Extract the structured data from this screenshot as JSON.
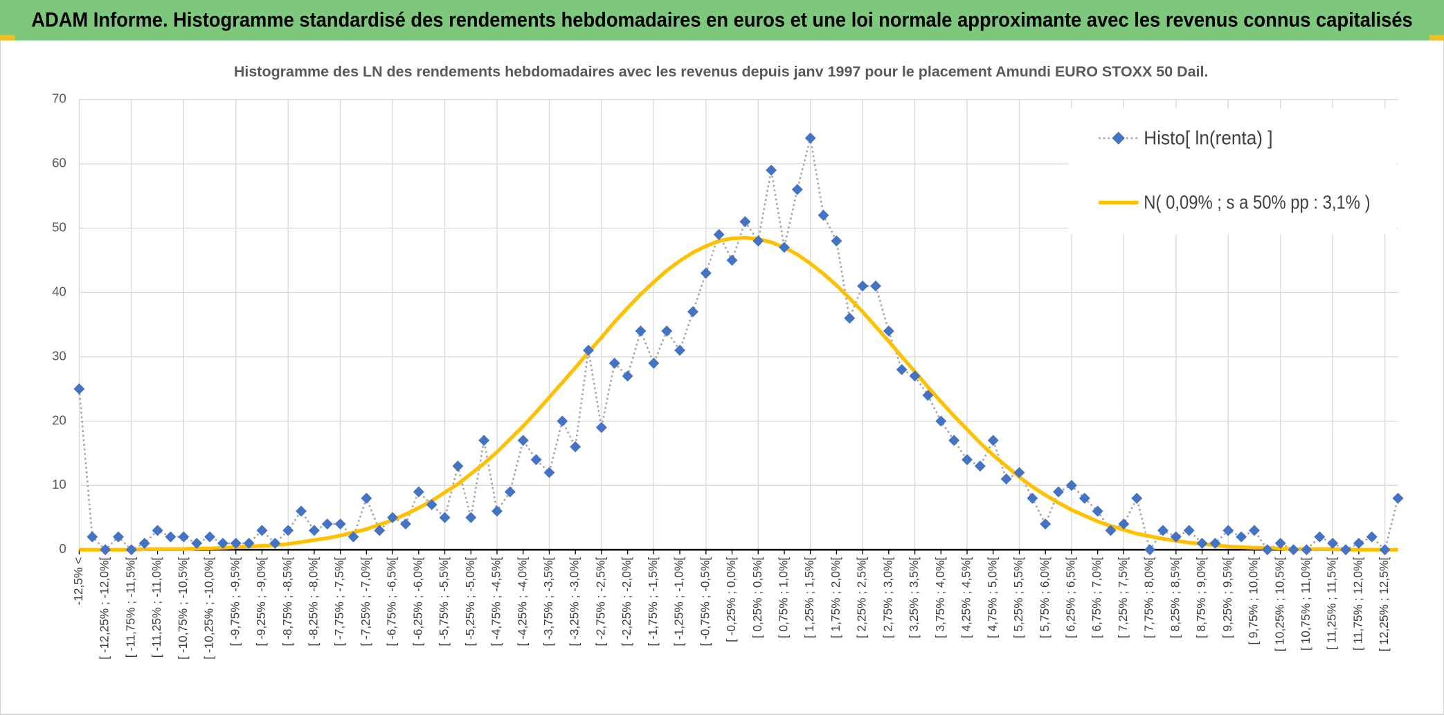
{
  "page_title": "ADAM Informe. Histogramme standardisé des rendements hebdomadaires en euros et une loi normale approximante avec les revenus connus capitalisés",
  "chart_data": {
    "type": "line",
    "title": "Histogramme des LN des rendements hebdomadaires avec les revenus depuis janv 1997 pour le placement Amundi EURO STOXX 50 Dail.",
    "categories": [
      "-12,5% <",
      null,
      "[ -12,25% ; -12,0%[",
      null,
      "[ -11,75% ; -11,5%[",
      null,
      "[ -11,25% ; -11,0%[",
      null,
      "[ -10,75% ; -10,5%[",
      null,
      "[ -10,25% ; -10,0%[",
      null,
      "[ -9,75% ; -9,5%[",
      null,
      "[ -9,25% ; -9,0%[",
      null,
      "[ -8,75% ; -8,5%[",
      null,
      "[ -8,25% ; -8,0%[",
      null,
      "[ -7,75% ; -7,5%[",
      null,
      "[ -7,25% ; -7,0%[",
      null,
      "[ -6,75% ; -6,5%[",
      null,
      "[ -6,25% ; -6,0%[",
      null,
      "[ -5,75% ; -5,5%[",
      null,
      "[ -5,25% ; -5,0%[",
      null,
      "[ -4,75% ; -4,5%[",
      null,
      "[ -4,25% ; -4,0%[",
      null,
      "[ -3,75% ; -3,5%[",
      null,
      "[ -3,25% ; -3,0%[",
      null,
      "[ -2,75% ; -2,5%[",
      null,
      "[ -2,25% ; -2,0%[",
      null,
      "[ -1,75% ; -1,5%[",
      null,
      "[ -1,25% ; -1,0%[",
      null,
      "[ -0,75% ; -0,5%[",
      null,
      "[ -0,25% ; 0,0%[",
      null,
      "[ 0,25% ; 0,5%[",
      null,
      "[ 0,75% ; 1,0%[",
      null,
      "[ 1,25% ; 1,5%[",
      null,
      "[ 1,75% ; 2,0%[",
      null,
      "[ 2,25% ; 2,5%[",
      null,
      "[ 2,75% ; 3,0%[",
      null,
      "[ 3,25% ; 3,5%[",
      null,
      "[ 3,75% ; 4,0%[",
      null,
      "[ 4,25% ; 4,5%[",
      null,
      "[ 4,75% ; 5,0%[",
      null,
      "[ 5,25% ; 5,5%[",
      null,
      "[ 5,75% ; 6,0%[",
      null,
      "[ 6,25% ; 6,5%[",
      null,
      "[ 6,75% ; 7,0%[",
      null,
      "[ 7,25% ; 7,5%[",
      null,
      "[ 7,75% ; 8,0%[",
      null,
      "[ 8,25% ; 8,5%[",
      null,
      "[ 8,75% ; 9,0%[",
      null,
      "[ 9,25% ; 9,5%[",
      null,
      "[ 9,75% ; 10,0%[",
      null,
      "[ 10,25% ; 10,5%[",
      null,
      "[ 10,75% ; 11,0%[",
      null,
      "[ 11,25% ; 11,5%[",
      null,
      "[ 11,75% ; 12,0%[",
      null,
      "[ 12,25% ; 12,5%[",
      null
    ],
    "series": [
      {
        "name": "Histo[ ln(renta) ]",
        "color": "#4472c4",
        "line_color": "#a6a6a6",
        "values": [
          25,
          2,
          0,
          2,
          0,
          1,
          3,
          2,
          2,
          1,
          2,
          1,
          1,
          1,
          3,
          1,
          3,
          6,
          3,
          4,
          4,
          2,
          8,
          3,
          5,
          4,
          9,
          7,
          5,
          13,
          5,
          17,
          6,
          9,
          17,
          14,
          12,
          20,
          16,
          31,
          19,
          29,
          27,
          34,
          29,
          34,
          31,
          37,
          43,
          49,
          45,
          51,
          48,
          59,
          47,
          56,
          64,
          52,
          48,
          36,
          41,
          41,
          34,
          28,
          27,
          24,
          20,
          17,
          14,
          13,
          17,
          11,
          12,
          8,
          4,
          9,
          10,
          8,
          6,
          3,
          4,
          8,
          0,
          3,
          2,
          3,
          1,
          1,
          3,
          2,
          3,
          0,
          1,
          0,
          0,
          2,
          1,
          0,
          1,
          2,
          0,
          8
        ]
      },
      {
        "name": "N( 0,09% ; s a 50% pp : 3,1% )",
        "color": "#ffc000",
        "values": [
          0,
          0,
          0,
          0,
          0,
          0.1,
          0.1,
          0.1,
          0.1,
          0.2,
          0.2,
          0.3,
          0.4,
          0.5,
          0.6,
          0.7,
          0.9,
          1.2,
          1.5,
          1.8,
          2.2,
          2.7,
          3.2,
          3.9,
          4.6,
          5.5,
          6.5,
          7.6,
          8.9,
          10.2,
          11.8,
          13.4,
          15.2,
          17.2,
          19.2,
          21.4,
          23.7,
          26.0,
          28.3,
          30.7,
          33.0,
          35.4,
          37.6,
          39.7,
          41.6,
          43.4,
          44.9,
          46.2,
          47.2,
          48.0,
          48.4,
          48.5,
          48.3,
          47.8,
          47.0,
          45.9,
          44.5,
          42.9,
          41.1,
          39.1,
          37.0,
          34.7,
          32.4,
          30.0,
          27.7,
          25.3,
          23.0,
          20.8,
          18.7,
          16.6,
          14.7,
          13.0,
          11.3,
          9.8,
          8.5,
          7.3,
          6.2,
          5.3,
          4.4,
          3.7,
          3.1,
          2.5,
          2.1,
          1.7,
          1.4,
          1.1,
          0.9,
          0.7,
          0.5,
          0.4,
          0.3,
          0.3,
          0.2,
          0.1,
          0.1,
          0.1,
          0.1,
          0,
          0,
          0,
          0,
          0
        ]
      }
    ],
    "ylim": [
      0,
      70
    ],
    "yticks": [
      0,
      10,
      20,
      30,
      40,
      50,
      60,
      70
    ],
    "grid": true,
    "legend": "top-right"
  }
}
